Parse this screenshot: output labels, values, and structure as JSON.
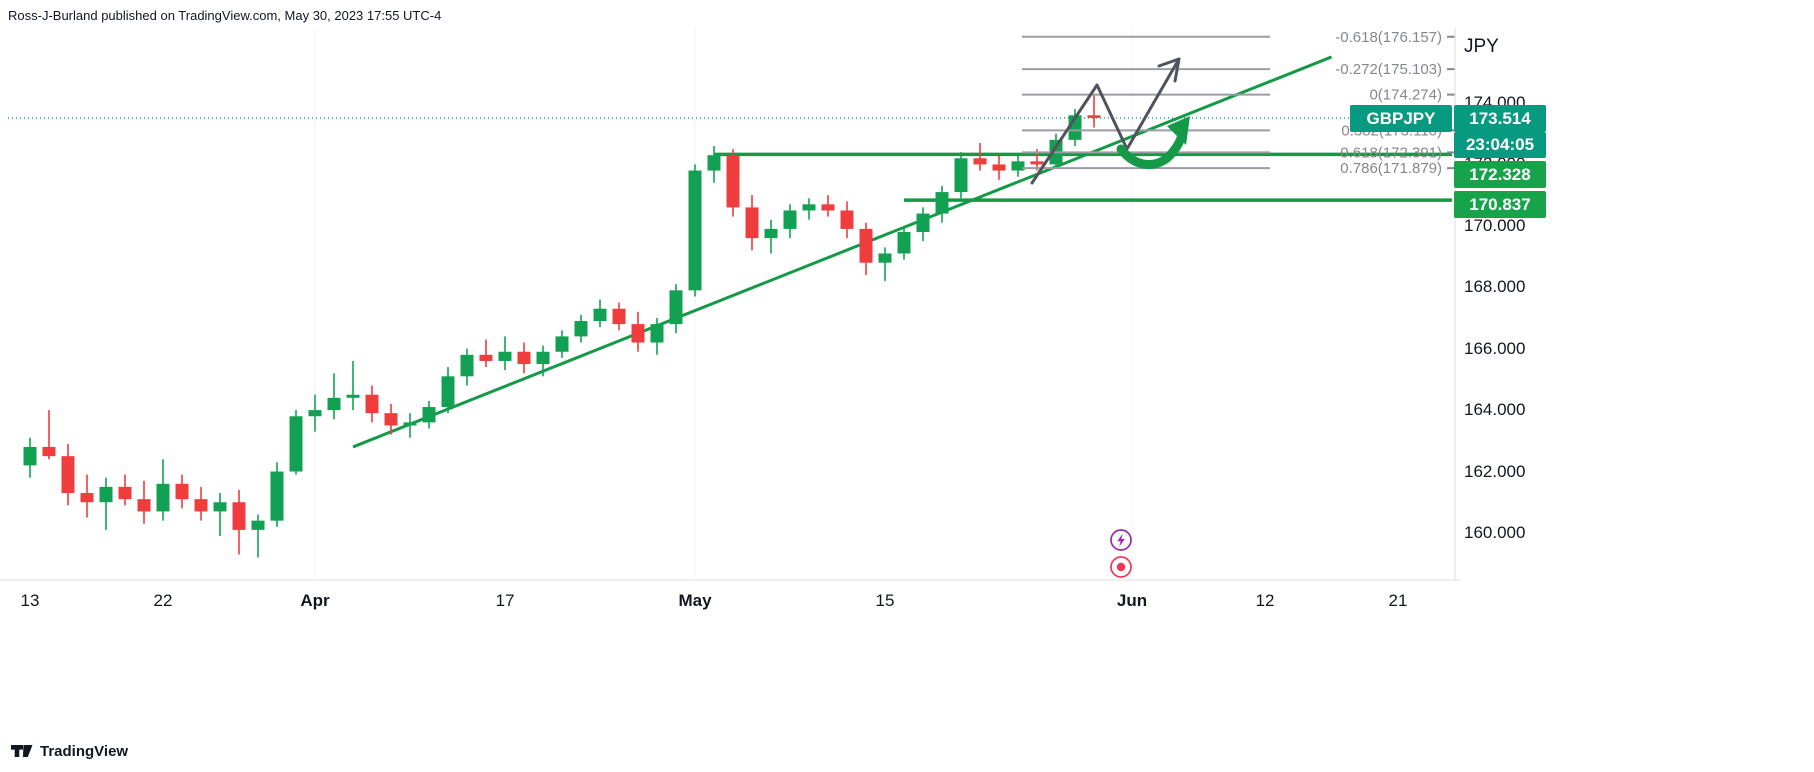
{
  "header": {
    "publish_line": "Ross-J-Burland published on TradingView.com, May 30, 2023 17:55 UTC-4"
  },
  "badges": {
    "symbol": "GBPJPY",
    "last_price": "173.514",
    "countdown": "23:04:05",
    "level_1": "172.328",
    "level_2": "170.837"
  },
  "footer": {
    "brand": "TradingView"
  },
  "colors": {
    "up": "#12a152",
    "down": "#ef3c3c",
    "accent_teal": "#089981",
    "line_green": "#149a46",
    "fib_gray": "#9b9da3",
    "fib_text": "#85878f",
    "arrow_gray": "#50535e",
    "marker_purple": "#9c27b0",
    "marker_red": "#f23655",
    "text_dark": "#131722"
  },
  "chart_data": {
    "type": "candlestick",
    "symbol": "GBPJPY",
    "current_price_line": 173.514,
    "ylim": [
      158.4,
      176.6
    ],
    "price_scale": {
      "currency_label": "JPY",
      "ticks": [
        "174.000",
        "172.000",
        "170.000",
        "168.000",
        "166.000",
        "164.000",
        "162.000",
        "160.000"
      ]
    },
    "time_scale": {
      "labels": [
        {
          "text": "13",
          "index": 0,
          "major": false
        },
        {
          "text": "22",
          "index": 7,
          "major": false
        },
        {
          "text": "Apr",
          "index": 15,
          "major": true
        },
        {
          "text": "17",
          "index": 25,
          "major": false
        },
        {
          "text": "May",
          "index": 35,
          "major": true
        },
        {
          "text": "15",
          "index": 45,
          "major": false
        },
        {
          "text": "Jun",
          "index": 58,
          "major": true
        },
        {
          "text": "12",
          "index": 65,
          "major": false
        },
        {
          "text": "21",
          "index": 72,
          "major": false
        }
      ]
    },
    "candles": [
      [
        162.2,
        163.1,
        161.8,
        162.8
      ],
      [
        162.8,
        164.0,
        162.4,
        162.5
      ],
      [
        162.5,
        162.9,
        160.9,
        161.3
      ],
      [
        161.3,
        161.9,
        160.5,
        161.0
      ],
      [
        161.0,
        161.8,
        160.1,
        161.5
      ],
      [
        161.5,
        161.9,
        160.9,
        161.1
      ],
      [
        161.1,
        161.7,
        160.3,
        160.7
      ],
      [
        160.7,
        162.4,
        160.4,
        161.6
      ],
      [
        161.6,
        161.9,
        160.8,
        161.1
      ],
      [
        161.1,
        161.5,
        160.4,
        160.7
      ],
      [
        160.7,
        161.3,
        159.9,
        161.0
      ],
      [
        161.0,
        161.4,
        159.3,
        160.1
      ],
      [
        160.1,
        160.6,
        159.2,
        160.4
      ],
      [
        160.4,
        162.3,
        160.2,
        162.0
      ],
      [
        162.0,
        164.0,
        161.9,
        163.8
      ],
      [
        163.8,
        164.5,
        163.3,
        164.0
      ],
      [
        164.0,
        165.2,
        163.7,
        164.4
      ],
      [
        164.4,
        165.6,
        164.0,
        164.5
      ],
      [
        164.5,
        164.8,
        163.6,
        163.9
      ],
      [
        163.9,
        164.2,
        163.2,
        163.5
      ],
      [
        163.5,
        163.9,
        163.1,
        163.6
      ],
      [
        163.6,
        164.3,
        163.4,
        164.1
      ],
      [
        164.1,
        165.4,
        163.9,
        165.1
      ],
      [
        165.1,
        166.0,
        164.8,
        165.8
      ],
      [
        165.8,
        166.3,
        165.4,
        165.6
      ],
      [
        165.6,
        166.4,
        165.3,
        165.9
      ],
      [
        165.9,
        166.2,
        165.2,
        165.5
      ],
      [
        165.5,
        166.1,
        165.1,
        165.9
      ],
      [
        165.9,
        166.6,
        165.7,
        166.4
      ],
      [
        166.4,
        167.1,
        166.2,
        166.9
      ],
      [
        166.9,
        167.6,
        166.7,
        167.3
      ],
      [
        167.3,
        167.5,
        166.6,
        166.8
      ],
      [
        166.8,
        167.2,
        165.9,
        166.2
      ],
      [
        166.2,
        167.0,
        165.8,
        166.8
      ],
      [
        166.8,
        168.1,
        166.5,
        167.9
      ],
      [
        167.9,
        172.0,
        167.7,
        171.8
      ],
      [
        171.8,
        172.6,
        171.4,
        172.3
      ],
      [
        172.3,
        172.5,
        170.3,
        170.6
      ],
      [
        170.6,
        171.0,
        169.2,
        169.6
      ],
      [
        169.6,
        170.2,
        169.1,
        169.9
      ],
      [
        169.9,
        170.7,
        169.6,
        170.5
      ],
      [
        170.5,
        170.9,
        170.2,
        170.7
      ],
      [
        170.7,
        171.0,
        170.3,
        170.5
      ],
      [
        170.5,
        170.8,
        169.6,
        169.9
      ],
      [
        169.9,
        170.1,
        168.4,
        168.8
      ],
      [
        168.8,
        169.3,
        168.2,
        169.1
      ],
      [
        169.1,
        170.0,
        168.9,
        169.8
      ],
      [
        169.8,
        170.6,
        169.5,
        170.4
      ],
      [
        170.4,
        171.3,
        170.1,
        171.1
      ],
      [
        171.1,
        172.4,
        170.9,
        172.2
      ],
      [
        172.2,
        172.7,
        171.8,
        172.0
      ],
      [
        172.0,
        172.3,
        171.5,
        171.8
      ],
      [
        171.8,
        172.3,
        171.6,
        172.1
      ],
      [
        172.1,
        172.5,
        171.8,
        172.0
      ],
      [
        172.0,
        173.0,
        171.9,
        172.8
      ],
      [
        172.8,
        173.8,
        172.6,
        173.6
      ],
      [
        173.6,
        174.3,
        173.2,
        173.514
      ]
    ],
    "trendline": {
      "from": {
        "index": 17,
        "price": 162.8
      },
      "to": {
        "index": 68.5,
        "price": 175.5
      }
    },
    "horizontal_lines": [
      {
        "price": 172.328,
        "from_index": 36
      },
      {
        "price": 170.837,
        "from_index": 46
      }
    ],
    "fib_levels": [
      {
        "label": "-0.618(176.157)",
        "price": 176.157
      },
      {
        "label": "-0.272(175.103)",
        "price": 175.103
      },
      {
        "label": "0(174.274)",
        "price": 174.274
      },
      {
        "label": "0.382(173.110)",
        "price": 173.11
      },
      {
        "label": "0.618(172.391)",
        "price": 172.391
      },
      {
        "label": "0.786(171.879)",
        "price": 171.879
      }
    ]
  }
}
